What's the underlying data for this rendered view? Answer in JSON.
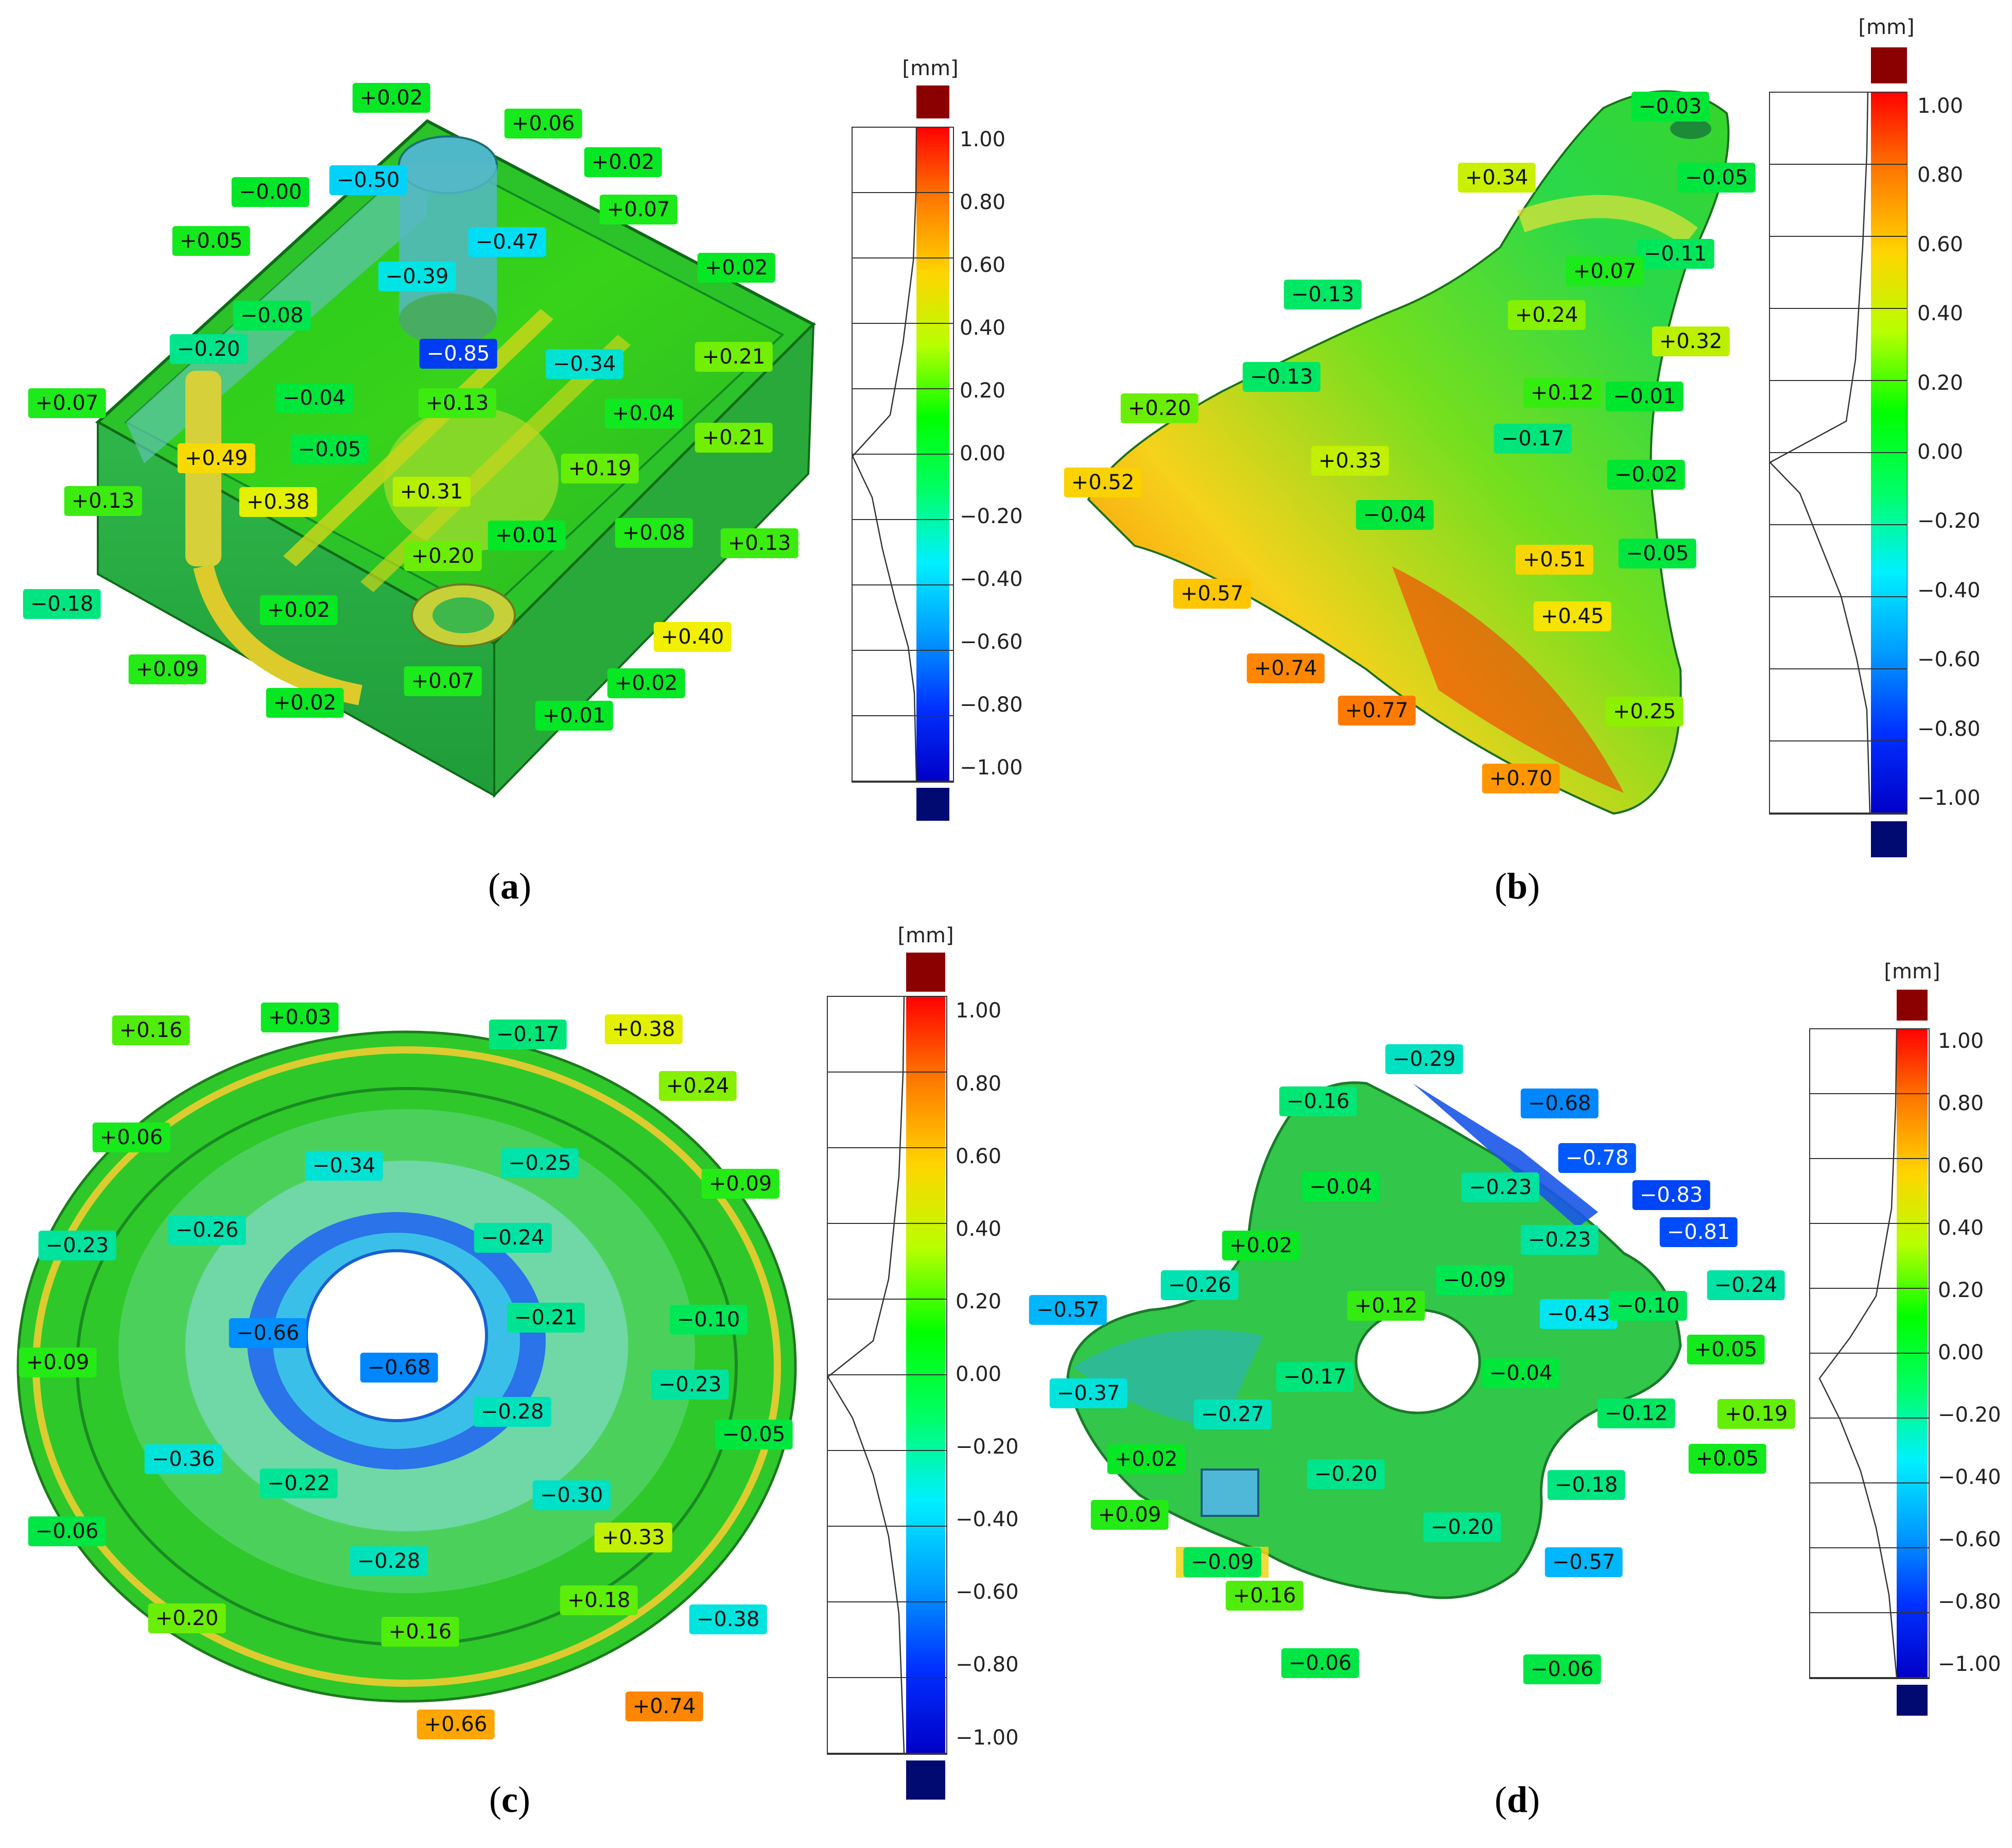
{
  "unit_label": "[mm]",
  "scale_ticks": [
    "1.00",
    "0.80",
    "0.60",
    "0.40",
    "0.20",
    "0.00",
    "−0.20",
    "−0.40",
    "−0.60",
    "−0.80",
    "−1.00"
  ],
  "scale_colors": {
    "overflow_top": "#8b0000",
    "overflow_bottom": "#000a70",
    "stops": [
      "#ff0000",
      "#ff7a00",
      "#ffd400",
      "#b8ff00",
      "#00ff00",
      "#00ff66",
      "#00f0ff",
      "#009cff",
      "#0030ff",
      "#0000c8"
    ]
  },
  "panels": [
    {
      "caption": "a",
      "callouts": [
        "+0.02",
        "+0.06",
        "−0.50",
        "+0.02",
        "−0.00",
        "+0.07",
        "+0.05",
        "−0.47",
        "−0.39",
        "+0.02",
        "−0.08",
        "−0.20",
        "−0.85",
        "+0.21",
        "−0.34",
        "+0.07",
        "−0.04",
        "+0.13",
        "+0.04",
        "+0.21",
        "+0.49",
        "−0.05",
        "+0.19",
        "+0.13",
        "+0.38",
        "+0.31",
        "+0.01",
        "+0.08",
        "+0.13",
        "−0.18",
        "+0.20",
        "+0.02",
        "+0.40",
        "+0.09",
        "+0.07",
        "+0.02",
        "+0.02",
        "+0.01"
      ]
    },
    {
      "caption": "b",
      "callouts": [
        "−0.03",
        "+0.34",
        "−0.05",
        "−0.11",
        "+0.07",
        "−0.13",
        "+0.24",
        "+0.32",
        "−0.13",
        "+0.12",
        "−0.01",
        "+0.20",
        "−0.17",
        "+0.33",
        "+0.52",
        "−0.02",
        "−0.04",
        "+0.51",
        "−0.05",
        "+0.57",
        "+0.45",
        "+0.74",
        "+0.77",
        "+0.25",
        "+0.70"
      ]
    },
    {
      "caption": "c",
      "callouts": [
        "+0.16",
        "+0.03",
        "−0.17",
        "+0.38",
        "+0.24",
        "+0.06",
        "−0.34",
        "−0.25",
        "+0.09",
        "−0.26",
        "−0.24",
        "−0.23",
        "−0.66",
        "−0.21",
        "−0.10",
        "+0.09",
        "−0.68",
        "−0.23",
        "−0.28",
        "−0.05",
        "−0.36",
        "−0.22",
        "−0.30",
        "+0.33",
        "−0.06",
        "−0.28",
        "+0.18",
        "−0.38",
        "+0.20",
        "+0.16",
        "+0.74",
        "+0.66"
      ]
    },
    {
      "caption": "d",
      "callouts": [
        "−0.29",
        "−0.16",
        "−0.68",
        "−0.78",
        "−0.04",
        "−0.23",
        "−0.83",
        "−0.23",
        "+0.02",
        "−0.81",
        "−0.09",
        "−0.26",
        "−0.24",
        "−0.57",
        "+0.12",
        "−0.43",
        "−0.10",
        "+0.05",
        "−0.17",
        "−0.04",
        "−0.37",
        "−0.27",
        "−0.12",
        "+0.19",
        "+0.05",
        "+0.02",
        "−0.20",
        "−0.18",
        "+0.09",
        "−0.20",
        "−0.09",
        "−0.57",
        "+0.16",
        "−0.06",
        "−0.06"
      ]
    }
  ]
}
